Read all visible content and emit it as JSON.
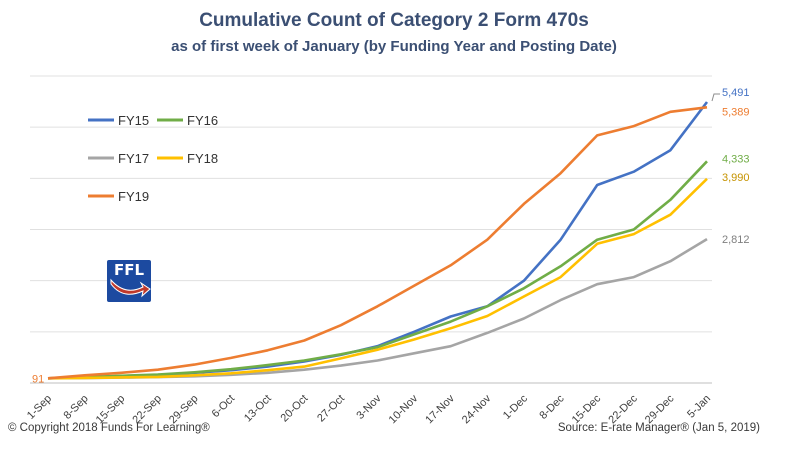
{
  "chart_data": {
    "type": "line",
    "title": "Cumulative Count of Category 2 Form 470s",
    "subtitle": "as of first week of January (by Funding Year and Posting Date)",
    "categories": [
      "1-Sep",
      "8-Sep",
      "15-Sep",
      "22-Sep",
      "29-Sep",
      "6-Oct",
      "13-Oct",
      "20-Oct",
      "27-Oct",
      "3-Nov",
      "10-Nov",
      "17-Nov",
      "24-Nov",
      "1-Dec",
      "8-Dec",
      "15-Dec",
      "22-Dec",
      "29-Dec",
      "5-Jan"
    ],
    "ylim": [
      0,
      6000
    ],
    "grid": true,
    "legend_placement": "left",
    "series": [
      {
        "name": "FY15",
        "color": "#4472c4",
        "end_label": "5,491",
        "values": [
          91,
          110,
          130,
          155,
          200,
          250,
          320,
          420,
          550,
          720,
          1000,
          1300,
          1500,
          2000,
          2800,
          3870,
          4130,
          4550,
          5491
        ]
      },
      {
        "name": "FY16",
        "color": "#70ad47",
        "end_label": "4,333",
        "values": [
          91,
          115,
          140,
          165,
          210,
          270,
          350,
          440,
          560,
          700,
          950,
          1200,
          1500,
          1850,
          2280,
          2800,
          3000,
          3580,
          4333
        ]
      },
      {
        "name": "FY17",
        "color": "#a5a5a5",
        "end_label": "2,812",
        "values": [
          91,
          95,
          105,
          115,
          130,
          160,
          200,
          260,
          340,
          440,
          580,
          720,
          980,
          1260,
          1620,
          1930,
          2070,
          2380,
          2812
        ]
      },
      {
        "name": "FY18",
        "color": "#ffc000",
        "end_label": "3,990",
        "values": [
          91,
          100,
          110,
          120,
          150,
          190,
          250,
          320,
          480,
          650,
          850,
          1070,
          1310,
          1690,
          2070,
          2720,
          2910,
          3290,
          3990
        ]
      },
      {
        "name": "FY19",
        "color": "#ed7d31",
        "end_label": "5,389",
        "values": [
          91,
          150,
          200,
          260,
          360,
          490,
          640,
          830,
          1130,
          1500,
          1900,
          2300,
          2800,
          3500,
          4100,
          4840,
          5020,
          5300,
          5389
        ]
      }
    ],
    "start_label": "91"
  },
  "footer": {
    "copyright": "© Copyright 2018 Funds For Learning®",
    "source": "Source: E-rate Manager® (Jan 5, 2019)"
  },
  "logo": {
    "text": "FFL",
    "bg": "#1c4aa0",
    "arrow": "#c0392b"
  }
}
